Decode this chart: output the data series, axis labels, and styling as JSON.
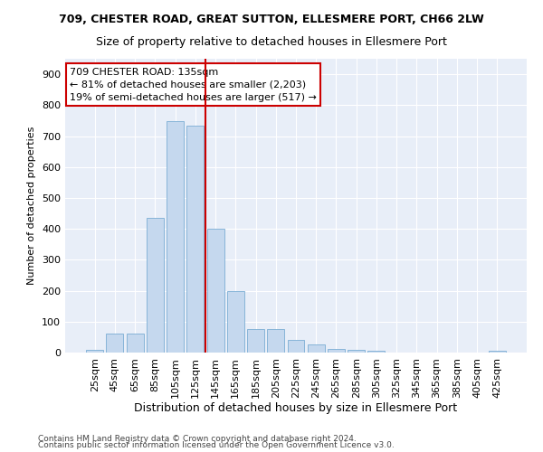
{
  "title": "709, CHESTER ROAD, GREAT SUTTON, ELLESMERE PORT, CH66 2LW",
  "subtitle": "Size of property relative to detached houses in Ellesmere Port",
  "xlabel": "Distribution of detached houses by size in Ellesmere Port",
  "ylabel": "Number of detached properties",
  "bar_color": "#c5d8ee",
  "bar_edge_color": "#7aadd4",
  "background_color": "#e8eef8",
  "grid_color": "#ffffff",
  "fig_background": "#ffffff",
  "categories": [
    "25sqm",
    "45sqm",
    "65sqm",
    "85sqm",
    "105sqm",
    "125sqm",
    "145sqm",
    "165sqm",
    "185sqm",
    "205sqm",
    "225sqm",
    "245sqm",
    "265sqm",
    "285sqm",
    "305sqm",
    "325sqm",
    "345sqm",
    "365sqm",
    "385sqm",
    "405sqm",
    "425sqm"
  ],
  "values": [
    10,
    60,
    60,
    435,
    748,
    733,
    400,
    200,
    75,
    75,
    40,
    25,
    12,
    10,
    5,
    0,
    0,
    0,
    0,
    0,
    5
  ],
  "ylim": [
    0,
    950
  ],
  "yticks": [
    0,
    100,
    200,
    300,
    400,
    500,
    600,
    700,
    800,
    900
  ],
  "vline_x": 5.5,
  "vline_color": "#cc0000",
  "annotation_text": "709 CHESTER ROAD: 135sqm\n← 81% of detached houses are smaller (2,203)\n19% of semi-detached houses are larger (517) →",
  "annotation_box_color": "#ffffff",
  "annotation_box_edge": "#cc0000",
  "footnote1": "Contains HM Land Registry data © Crown copyright and database right 2024.",
  "footnote2": "Contains public sector information licensed under the Open Government Licence v3.0.",
  "title_fontsize": 9,
  "subtitle_fontsize": 9,
  "xlabel_fontsize": 9,
  "ylabel_fontsize": 8,
  "tick_fontsize": 8,
  "annot_fontsize": 8,
  "footnote_fontsize": 6.5
}
